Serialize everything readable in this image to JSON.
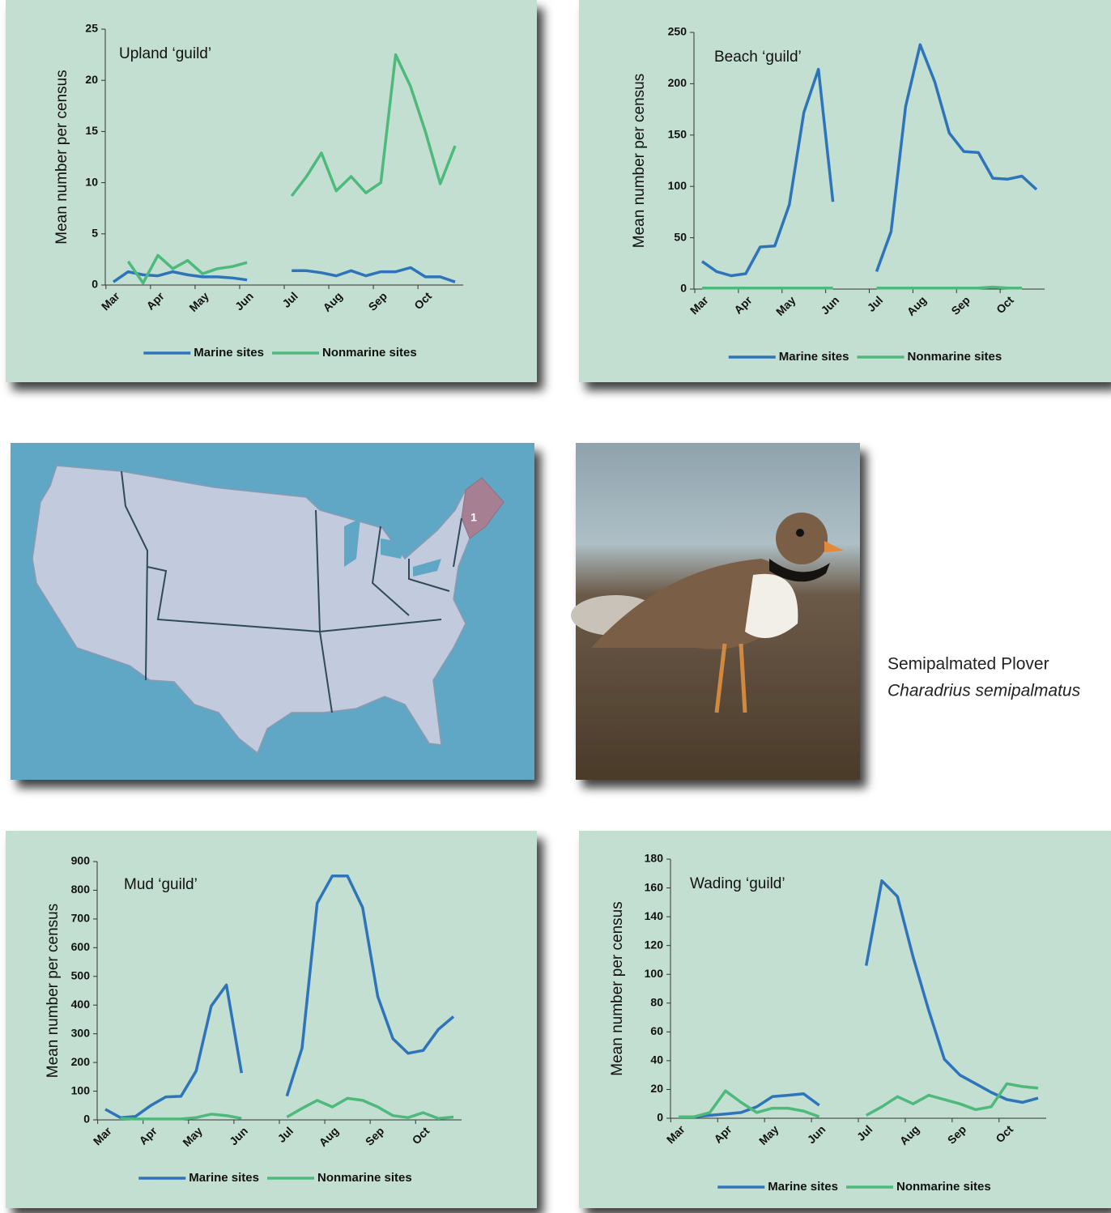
{
  "chart_data": [
    {
      "type": "line",
      "annotation": "Upland ‘guild’",
      "ylabel": "Mean number per census",
      "categories": [
        "Mar",
        null,
        null,
        "Apr",
        null,
        null,
        "May",
        null,
        null,
        "Jun",
        null,
        null,
        "Jul",
        null,
        null,
        "Aug",
        null,
        null,
        "Sep",
        null,
        null,
        "Oct",
        null,
        null
      ],
      "series": [
        {
          "name": "Marine sites",
          "color": "#2e74bb",
          "values": [
            0.3,
            1.3,
            1.0,
            0.9,
            1.3,
            1.0,
            0.8,
            0.8,
            0.7,
            0.5,
            null,
            null,
            1.4,
            1.4,
            1.2,
            0.9,
            1.4,
            0.9,
            1.3,
            1.3,
            1.7,
            0.8,
            0.8,
            0.3
          ]
        },
        {
          "name": "Nonmarine sites",
          "color": "#4dba7b",
          "values": [
            null,
            2.3,
            0.2,
            2.9,
            1.6,
            2.4,
            1.1,
            1.6,
            1.8,
            2.2,
            null,
            null,
            8.7,
            10.6,
            12.9,
            9.2,
            10.6,
            9.0,
            10.0,
            22.5,
            19.4,
            15.0,
            9.9,
            13.6
          ]
        }
      ],
      "ylim": [
        0,
        25
      ],
      "yticks": [
        0,
        5,
        10,
        15,
        20,
        25
      ],
      "grid": false,
      "legend": "bottom"
    },
    {
      "type": "line",
      "annotation": "Beach ‘guild’",
      "ylabel": "Mean number per census",
      "categories": [
        "Mar",
        null,
        null,
        "Apr",
        null,
        null,
        "May",
        null,
        null,
        "Jun",
        null,
        null,
        "Jul",
        null,
        null,
        "Aug",
        null,
        null,
        "Sep",
        null,
        null,
        "Oct",
        null,
        null
      ],
      "series": [
        {
          "name": "Marine sites",
          "color": "#2e74bb",
          "values": [
            27,
            17,
            13,
            15,
            41,
            42,
            82,
            172,
            214,
            85,
            null,
            null,
            17,
            56,
            178,
            238,
            202,
            152,
            134,
            133,
            108,
            107,
            110,
            97
          ]
        },
        {
          "name": "Nonmarine sites",
          "color": "#4dba7b",
          "values": [
            1,
            1,
            1,
            1,
            1,
            1,
            1,
            1,
            1,
            1,
            null,
            null,
            1,
            1,
            1,
            1,
            1,
            1,
            1,
            1,
            2,
            1,
            1,
            null
          ]
        }
      ],
      "ylim": [
        0,
        250
      ],
      "yticks": [
        0,
        50,
        100,
        150,
        200,
        250
      ],
      "grid": false,
      "legend": "bottom"
    },
    {
      "type": "line",
      "annotation": "Mud ‘guild’",
      "ylabel": "Mean number per census",
      "categories": [
        "Mar",
        null,
        null,
        "Apr",
        null,
        null,
        "May",
        null,
        null,
        "Jun",
        null,
        null,
        "Jul",
        null,
        null,
        "Aug",
        null,
        null,
        "Sep",
        null,
        null,
        "Oct",
        null,
        null
      ],
      "series": [
        {
          "name": "Marine sites",
          "color": "#2e74bb",
          "values": [
            37,
            8,
            12,
            50,
            80,
            82,
            170,
            397,
            470,
            163,
            null,
            null,
            83,
            250,
            755,
            850,
            850,
            740,
            430,
            283,
            232,
            242,
            315,
            360
          ]
        },
        {
          "name": "Nonmarine sites",
          "color": "#4dba7b",
          "values": [
            null,
            5,
            3,
            3,
            3,
            3,
            8,
            20,
            15,
            5,
            null,
            null,
            10,
            40,
            68,
            45,
            75,
            68,
            45,
            15,
            8,
            25,
            5,
            10
          ]
        }
      ],
      "ylim": [
        0,
        900
      ],
      "yticks": [
        0,
        100,
        200,
        300,
        400,
        500,
        600,
        700,
        800,
        900
      ],
      "grid": false,
      "legend": "bottom"
    },
    {
      "type": "line",
      "annotation": "Wading ‘guild’",
      "ylabel": "Mean number per census",
      "categories": [
        "Mar",
        null,
        null,
        "Apr",
        null,
        null,
        "May",
        null,
        null,
        "Jun",
        null,
        null,
        "Jul",
        null,
        null,
        "Aug",
        null,
        null,
        "Sep",
        null,
        null,
        "Oct",
        null,
        null
      ],
      "series": [
        {
          "name": "Marine sites",
          "color": "#2e74bb",
          "values": [
            1,
            1,
            2,
            3,
            4,
            8,
            15,
            16,
            17,
            9,
            null,
            null,
            106,
            165,
            154,
            112,
            75,
            41,
            30,
            24,
            18,
            13,
            11,
            14
          ]
        },
        {
          "name": "Nonmarine sites",
          "color": "#4dba7b",
          "values": [
            1,
            1,
            4,
            19,
            11,
            4,
            7,
            7,
            5,
            1,
            null,
            null,
            2,
            8,
            15,
            10,
            16,
            13,
            10,
            6,
            8,
            24,
            22,
            21
          ]
        }
      ],
      "ylim": [
        0,
        180
      ],
      "yticks": [
        0,
        20,
        40,
        60,
        80,
        100,
        120,
        140,
        160,
        180
      ],
      "grid": false,
      "legend": "bottom"
    }
  ],
  "map": {
    "region_label": "1"
  },
  "caption": {
    "common_name": "Semipalmated Plover",
    "scientific_name": "Charadrius semipalmatus"
  }
}
